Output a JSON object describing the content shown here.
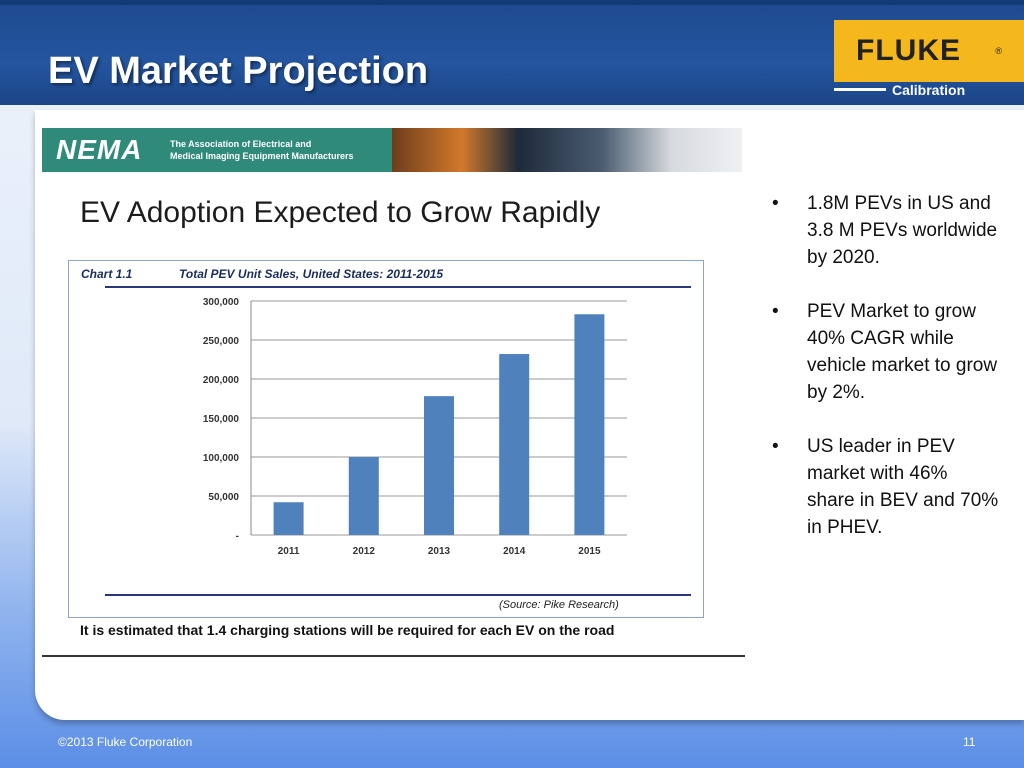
{
  "slide": {
    "title": "EV Market Projection",
    "logo_text": "FLUKE",
    "logo_reg": "®",
    "logo_sub": "Calibration",
    "footer": "©2013 Fluke Corporation",
    "page": "11"
  },
  "banner": {
    "org": "NEMA",
    "desc_line1": "The Association of Electrical and",
    "desc_line2": "Medical Imaging Equipment Manufacturers"
  },
  "screenshot": {
    "heading": "EV Adoption Expected to Grow Rapidly",
    "chart_label": "Chart 1.1",
    "source": "(Source: Pike Research)",
    "footnote": "It is estimated that 1.4 charging stations will be required for each EV on the road"
  },
  "bullets": [
    "1.8M PEVs in US and 3.8 M PEVs worldwide by 2020.",
    "PEV Market to grow 40% CAGR while vehicle market to grow by 2%.",
    "US leader in PEV market with 46% share in BEV and 70% in PHEV."
  ],
  "bullet_marker": "•",
  "chart_data": {
    "type": "bar",
    "title": "Total PEV Unit Sales, United States:  2011-2015",
    "categories": [
      "2011",
      "2012",
      "2013",
      "2014",
      "2015"
    ],
    "values": [
      42000,
      100000,
      178000,
      232000,
      283000
    ],
    "ylim": [
      0,
      300000
    ],
    "yticks": [
      0,
      50000,
      100000,
      150000,
      200000,
      250000,
      300000
    ],
    "ytick_labels": [
      "-",
      "50,000",
      "100,000",
      "150,000",
      "200,000",
      "250,000",
      "300,000"
    ],
    "bar_color": "#4f81bd",
    "grid": true,
    "xlabel": "",
    "ylabel": ""
  }
}
